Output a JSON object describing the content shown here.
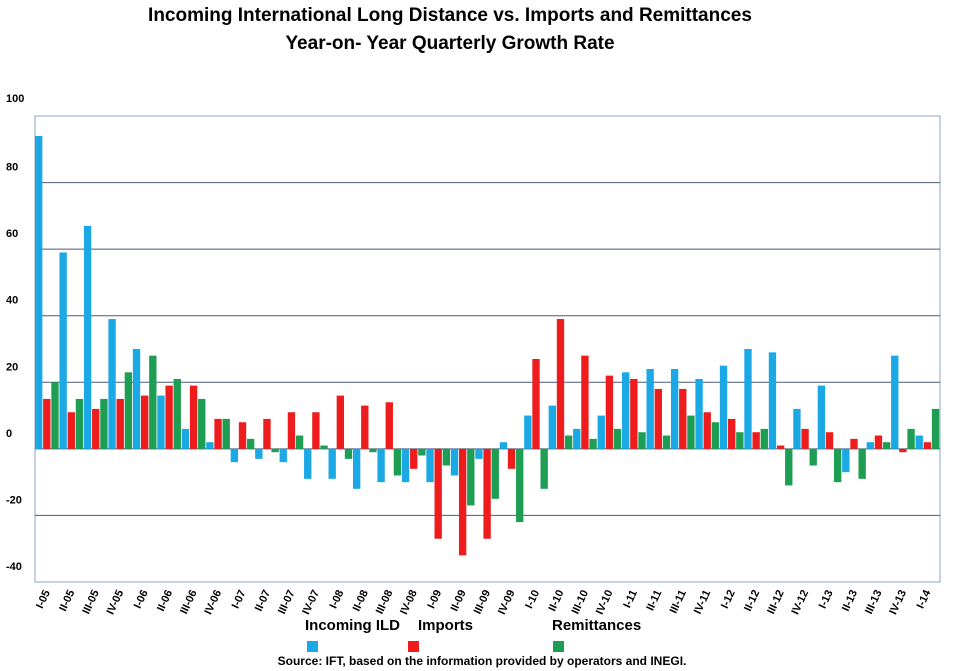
{
  "header": {
    "title_line1": "Incoming International Long Distance vs. Imports and Remittances",
    "title_line2": "Year-on- Year Quarterly Growth Rate"
  },
  "source": "Source: IFT, based on the information provided by operators and INEGI.",
  "colors": {
    "ild": "#1BA9E6",
    "imports": "#EE1C1C",
    "remittances": "#1E9E52",
    "grid": "#4a5a7a",
    "border": "#8fa3c8"
  },
  "chart_data": {
    "type": "bar",
    "title": "Incoming International Long Distance vs. Imports and Remittances Year-on- Year Quarterly Growth Rate",
    "ylim": [
      -40,
      100
    ],
    "yticks": [
      -40,
      -20,
      0,
      20,
      40,
      60,
      80,
      100
    ],
    "grid": true,
    "legend_position": "bottom",
    "categories": [
      "I-05",
      "II-05",
      "III-05",
      "IV-05",
      "I-06",
      "II-06",
      "III-06",
      "IV-06",
      "I-07",
      "II-07",
      "III-07",
      "IV-07",
      "I-08",
      "II-08",
      "III-08",
      "IV-08",
      "I-09",
      "II-09",
      "III-09",
      "IV-09",
      "I-10",
      "II-10",
      "III-10",
      "IV-10",
      "I-11",
      "II-11",
      "III-11",
      "IV-11",
      "I-12",
      "II-12",
      "III-12",
      "IV-12",
      "I-13",
      "II-13",
      "III-13",
      "IV-13",
      "I-14"
    ],
    "series": [
      {
        "name": "Incoming ILD",
        "values": [
          94,
          59,
          67,
          39,
          30,
          16,
          6,
          2,
          -4,
          -3,
          -4,
          -9,
          -9,
          -12,
          -10,
          -10,
          -10,
          -8,
          -3,
          2,
          10,
          13,
          6,
          10,
          23,
          24,
          24,
          21,
          25,
          30,
          29,
          12,
          19,
          -7,
          2,
          28,
          4
        ]
      },
      {
        "name": "Imports",
        "values": [
          15,
          11,
          12,
          15,
          16,
          19,
          19,
          9,
          8,
          9,
          11,
          11,
          16,
          13,
          14,
          -6,
          -27,
          -32,
          -27,
          -6,
          27,
          39,
          28,
          22,
          21,
          18,
          18,
          11,
          9,
          5,
          1,
          6,
          5,
          3,
          4,
          -1,
          2
        ]
      },
      {
        "name": "Remittances",
        "values": [
          20,
          15,
          15,
          23,
          28,
          21,
          15,
          9,
          3,
          -1,
          4,
          1,
          -3,
          -1,
          -8,
          -2,
          -5,
          -17,
          -15,
          -22,
          -12,
          4,
          3,
          6,
          5,
          4,
          10,
          8,
          5,
          6,
          -11,
          -5,
          -10,
          -9,
          2,
          6,
          12
        ]
      }
    ]
  }
}
